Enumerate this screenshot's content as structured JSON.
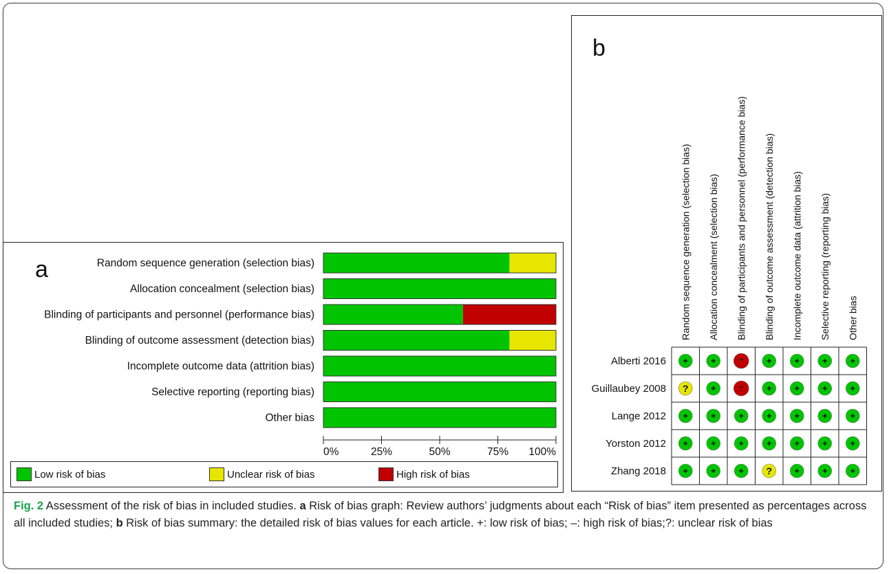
{
  "panel_a": {
    "letter": "a",
    "legend": [
      {
        "label": "Low risk of bias",
        "color": "#00c400"
      },
      {
        "label": "Unclear risk of bias",
        "color": "#e6e600"
      },
      {
        "label": "High risk of bias",
        "color": "#c00000"
      }
    ]
  },
  "panel_b": {
    "letter": "b"
  },
  "chart_data": [
    {
      "type": "bar",
      "orientation": "horizontal-stacked",
      "categories": [
        "Random sequence generation (selection bias)",
        "Allocation concealment (selection bias)",
        "Blinding of participants and personnel (performance bias)",
        "Blinding of outcome assessment (detection bias)",
        "Incomplete outcome data (attrition bias)",
        "Selective reporting (reporting bias)",
        "Other bias"
      ],
      "series": [
        {
          "name": "Low risk of bias",
          "color": "#00c400",
          "values": [
            80,
            100,
            60,
            80,
            100,
            100,
            100
          ]
        },
        {
          "name": "Unclear risk of bias",
          "color": "#e6e600",
          "values": [
            20,
            0,
            0,
            20,
            0,
            0,
            0
          ]
        },
        {
          "name": "High risk of bias",
          "color": "#c00000",
          "values": [
            0,
            0,
            40,
            0,
            0,
            0,
            0
          ]
        }
      ],
      "xlim": [
        0,
        100
      ],
      "xticks": [
        "0%",
        "25%",
        "50%",
        "75%",
        "100%"
      ],
      "grid": false,
      "legend": "bottom"
    },
    {
      "type": "table",
      "columns": [
        "Random sequence generation (selection bias)",
        "Allocation concealment (selection bias)",
        "Blinding of participants and personnel (performance bias)",
        "Blinding of outcome assessment (detection bias)",
        "Incomplete outcome data (attrition bias)",
        "Selective reporting (reporting bias)",
        "Other bias"
      ],
      "rows": [
        "Alberti 2016",
        "Guillaubey 2008",
        "Lange 2012",
        "Yorston 2012",
        "Zhang 2018"
      ],
      "values": [
        [
          "+",
          "+",
          "-",
          "+",
          "+",
          "+",
          "+"
        ],
        [
          "?",
          "+",
          "-",
          "+",
          "+",
          "+",
          "+"
        ],
        [
          "+",
          "+",
          "+",
          "+",
          "+",
          "+",
          "+"
        ],
        [
          "+",
          "+",
          "+",
          "+",
          "+",
          "+",
          "+"
        ],
        [
          "+",
          "+",
          "+",
          "?",
          "+",
          "+",
          "+"
        ]
      ],
      "symbol_colors": {
        "+": "#00c400",
        "?": "#e6e600",
        "-": "#c00000"
      }
    }
  ],
  "caption": {
    "fig_label": "Fig. 2",
    "part1": " Assessment of the risk of bias in included studies. ",
    "label_a": "a",
    "part2": " Risk of bias graph: Review authors’ judgments about each “Risk of bias” item presented as percentages across all included studies; ",
    "label_b": "b",
    "part3": " Risk of bias summary: the detailed risk of bias values for each article. +: low risk of bias; –: high risk of bias;?: unclear risk of bias"
  }
}
